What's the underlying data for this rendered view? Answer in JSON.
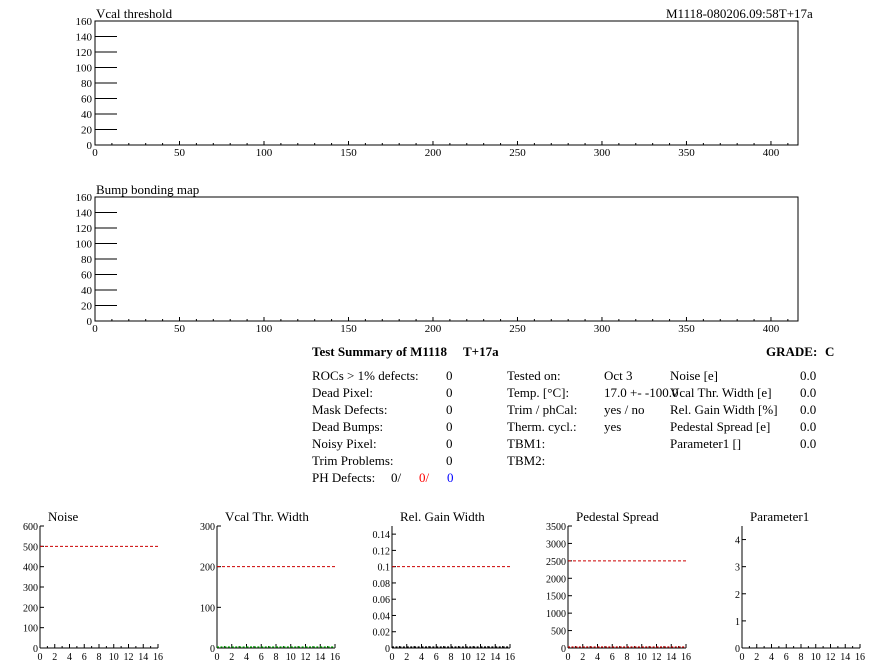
{
  "header": {
    "run_id": "M1118-080206.09:58T+17a"
  },
  "summary": {
    "title": "Test Summary of M1118",
    "temp_tag": "T+17a",
    "grade_label": "GRADE:",
    "grade_value": "C",
    "left_rows": [
      {
        "label": "ROCs > 1% defects:",
        "value": "0"
      },
      {
        "label": "Dead Pixel:",
        "value": "0"
      },
      {
        "label": "Mask Defects:",
        "value": "0"
      },
      {
        "label": "Dead Bumps:",
        "value": "0"
      },
      {
        "label": "Noisy Pixel:",
        "value": "0"
      },
      {
        "label": "Trim Problems:",
        "value": "0"
      }
    ],
    "ph_defects": {
      "label": "PH Defects:",
      "v1": "0/",
      "v2": "0/",
      "v3": "0"
    },
    "mid_rows": [
      {
        "label": "Tested on:",
        "value": "Oct 3"
      },
      {
        "label": "Temp. [°C]:",
        "value": "17.0 +- -100.0"
      },
      {
        "label": "Trim / phCal:",
        "value": "yes / no"
      },
      {
        "label": "Therm. cycl.:",
        "value": "yes"
      },
      {
        "label": "TBM1:",
        "value": ""
      },
      {
        "label": "TBM2:",
        "value": ""
      }
    ],
    "right_rows": [
      {
        "label": "Noise [e]",
        "value": "0.0"
      },
      {
        "label": "Vcal Thr. Width [e]",
        "value": "0.0"
      },
      {
        "label": "Rel. Gain Width [%]",
        "value": "0.0"
      },
      {
        "label": "Pedestal Spread [e]",
        "value": "0.0"
      },
      {
        "label": "Parameter1 []",
        "value": "0.0"
      }
    ]
  },
  "chart_data": [
    {
      "type": "heatmap",
      "title": "Vcal threshold",
      "xlim": [
        0,
        416
      ],
      "ylim": [
        0,
        160
      ],
      "xticks": [
        0,
        50,
        100,
        150,
        200,
        250,
        300,
        350,
        400
      ],
      "yticks": [
        0,
        20,
        40,
        60,
        80,
        100,
        120,
        140,
        160
      ],
      "values": []
    },
    {
      "type": "heatmap",
      "title": "Bump bonding map",
      "xlim": [
        0,
        416
      ],
      "ylim": [
        0,
        160
      ],
      "xticks": [
        0,
        50,
        100,
        150,
        200,
        250,
        300,
        350,
        400
      ],
      "yticks": [
        0,
        20,
        40,
        60,
        80,
        100,
        120,
        140,
        160
      ],
      "values": []
    },
    {
      "type": "line",
      "title": "Noise",
      "xlim": [
        0,
        16
      ],
      "ylim": [
        0,
        600
      ],
      "xticks": [
        0,
        2,
        4,
        6,
        8,
        10,
        12,
        14,
        16
      ],
      "yticks": [
        0,
        100,
        200,
        300,
        400,
        500,
        600
      ],
      "ytick_labels": [
        "0",
        "100",
        "200",
        "300",
        "400",
        "500",
        "600"
      ],
      "limit_line": 500,
      "limit_color": "#cc0000",
      "series": []
    },
    {
      "type": "line",
      "title": "Vcal Thr. Width",
      "xlim": [
        0,
        16
      ],
      "ylim": [
        0,
        300
      ],
      "xticks": [
        0,
        2,
        4,
        6,
        8,
        10,
        12,
        14,
        16
      ],
      "yticks": [
        0,
        100,
        200,
        300
      ],
      "ytick_labels": [
        "0",
        "100",
        "200",
        "300"
      ],
      "limit_line": 200,
      "limit_color": "#cc0000",
      "series": [
        {
          "color": "#00aa00",
          "style": "dashed",
          "values": [
            0,
            0,
            0,
            0,
            0,
            0,
            0,
            0,
            0,
            0,
            0,
            0,
            0,
            0,
            0,
            0
          ]
        }
      ]
    },
    {
      "type": "line",
      "title": "Rel. Gain Width",
      "xlim": [
        0,
        16
      ],
      "ylim": [
        0,
        0.15
      ],
      "xticks": [
        0,
        2,
        4,
        6,
        8,
        10,
        12,
        14,
        16
      ],
      "yticks": [
        0,
        0.02,
        0.04,
        0.06,
        0.08,
        0.1,
        0.12,
        0.14
      ],
      "ytick_labels": [
        "0",
        "0.02",
        "0.04",
        "0.06",
        "0.08",
        "0.1",
        "0.12",
        "0.14"
      ],
      "limit_line": 0.1,
      "limit_color": "#cc0000",
      "series": [
        {
          "color": "#000000",
          "style": "dashed",
          "values": [
            0,
            0,
            0,
            0,
            0,
            0,
            0,
            0,
            0,
            0,
            0,
            0,
            0,
            0,
            0,
            0
          ]
        }
      ]
    },
    {
      "type": "line",
      "title": "Pedestal Spread",
      "xlim": [
        0,
        16
      ],
      "ylim": [
        0,
        3500
      ],
      "xticks": [
        0,
        2,
        4,
        6,
        8,
        10,
        12,
        14,
        16
      ],
      "yticks": [
        0,
        500,
        1000,
        1500,
        2000,
        2500,
        3000,
        3500
      ],
      "ytick_labels": [
        "0",
        "500",
        "1000",
        "1500",
        "2000",
        "2500",
        "3000",
        "3500"
      ],
      "limit_line": 2500,
      "limit_color": "#cc0000",
      "series": [
        {
          "color": "#cc0000",
          "style": "dashed",
          "values": [
            0,
            0,
            0,
            0,
            0,
            0,
            0,
            0,
            0,
            0,
            0,
            0,
            0,
            0,
            0,
            0
          ]
        }
      ]
    },
    {
      "type": "line",
      "title": "Parameter1",
      "xlim": [
        0,
        16
      ],
      "ylim": [
        0,
        4.5
      ],
      "xticks": [
        0,
        2,
        4,
        6,
        8,
        10,
        12,
        14,
        16
      ],
      "yticks": [
        0,
        1,
        2,
        3,
        4
      ],
      "ytick_labels": [
        "0",
        "1",
        "2",
        "3",
        "4"
      ],
      "limit_line": null,
      "series": []
    }
  ]
}
